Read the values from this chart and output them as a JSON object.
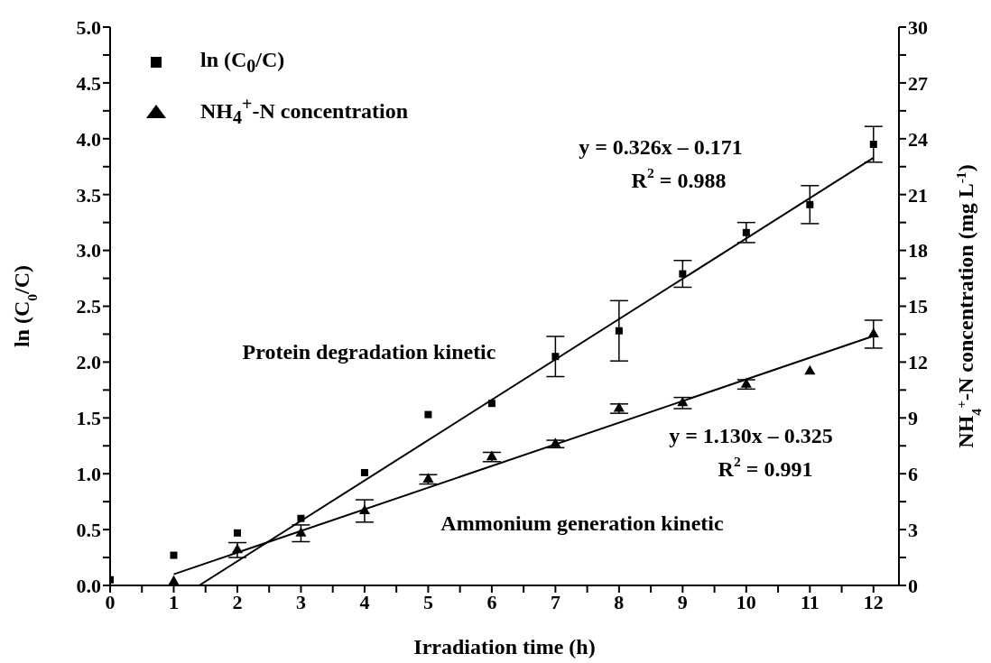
{
  "chart_data": {
    "type": "scatter",
    "xlabel": "Irradiation time (h)",
    "ylabel": "ln (C$_{0}$/C)",
    "y2label": "NH$_{4}$$^{+}$-N concentration (mg L$^{-1}$)",
    "xlim": [
      0,
      12.4
    ],
    "xticks": [
      0,
      {
        "value": 0.5,
        "label": null
      },
      1,
      {
        "value": 1.5,
        "label": null
      },
      2,
      {
        "value": 2.5,
        "label": null
      },
      3,
      {
        "value": 3.5,
        "label": null
      },
      4,
      {
        "value": 4.5,
        "label": null
      },
      5,
      {
        "value": 5.5,
        "label": null
      },
      6,
      {
        "value": 6.5,
        "label": null
      },
      7,
      {
        "value": 7.5,
        "label": null
      },
      8,
      {
        "value": 8.5,
        "label": null
      },
      9,
      {
        "value": 9.5,
        "label": null
      },
      10,
      {
        "value": 10.5,
        "label": null
      },
      11,
      {
        "value": 11.5,
        "label": null
      },
      12
    ],
    "ylim": [
      0,
      5
    ],
    "yticks": [
      {
        "value": 0,
        "label": "0.0"
      },
      {
        "value": 0.25,
        "label": null
      },
      {
        "value": 0.5,
        "label": "0.5"
      },
      {
        "value": 0.75,
        "label": null
      },
      {
        "value": 1,
        "label": "1.0"
      },
      {
        "value": 1.25,
        "label": null
      },
      {
        "value": 1.5,
        "label": "1.5"
      },
      {
        "value": 1.75,
        "label": null
      },
      {
        "value": 2,
        "label": "2.0"
      },
      {
        "value": 2.25,
        "label": null
      },
      {
        "value": 2.5,
        "label": "2.5"
      },
      {
        "value": 2.75,
        "label": null
      },
      {
        "value": 3,
        "label": "3.0"
      },
      {
        "value": 3.25,
        "label": null
      },
      {
        "value": 3.5,
        "label": "3.5"
      },
      {
        "value": 3.75,
        "label": null
      },
      {
        "value": 4,
        "label": "4.0"
      },
      {
        "value": 4.25,
        "label": null
      },
      {
        "value": 4.5,
        "label": "4.5"
      },
      {
        "value": 4.75,
        "label": null
      },
      {
        "value": 5,
        "label": "5.0"
      }
    ],
    "y2lim": [
      0,
      30
    ],
    "y2ticks": [
      0,
      {
        "value": 1.5,
        "label": null
      },
      3,
      {
        "value": 4.5,
        "label": null
      },
      6,
      {
        "value": 7.5,
        "label": null
      },
      9,
      {
        "value": 10.5,
        "label": null
      },
      12,
      {
        "value": 13.5,
        "label": null
      },
      15,
      {
        "value": 16.5,
        "label": null
      },
      18,
      {
        "value": 19.5,
        "label": null
      },
      21,
      {
        "value": 22.5,
        "label": null
      },
      24,
      {
        "value": 25.5,
        "label": null
      },
      27,
      {
        "value": 28.5,
        "label": null
      },
      30
    ],
    "legend": "top left",
    "series": [
      {
        "name": "ln (C$_{0}$/C)",
        "marker": "square",
        "color": "#000000",
        "x": [
          0,
          1,
          2,
          3,
          4,
          5,
          6,
          7,
          8,
          9,
          10,
          11,
          12
        ],
        "values": [
          0.05,
          0.27,
          0.47,
          0.6,
          1.01,
          1.53,
          1.63,
          2.05,
          2.28,
          2.79,
          3.16,
          3.41,
          3.95
        ],
        "errors": [
          null,
          null,
          null,
          null,
          null,
          null,
          null,
          0.18,
          0.27,
          0.12,
          0.09,
          0.17,
          0.16
        ]
      },
      {
        "name": "NH$_{4}$$^{+}$-N concentration",
        "marker": "triangle",
        "axis": "y2",
        "color": "#000000",
        "x": [
          1,
          2,
          3,
          4,
          5,
          6,
          7,
          8,
          9,
          10,
          11,
          12
        ],
        "values": [
          0.2,
          1.9,
          2.8,
          4.0,
          5.7,
          6.9,
          7.6,
          9.5,
          9.8,
          10.8,
          11.5,
          13.5
        ],
        "errors": [
          null,
          0.4,
          0.45,
          0.6,
          0.25,
          0.25,
          0.2,
          0.25,
          0.3,
          0.25,
          null,
          0.75
        ]
      },
      {
        "type": "line",
        "marker": "none",
        "color": "#000000",
        "x": [
          1.4,
          12
        ],
        "values": [
          0,
          3.83
        ]
      },
      {
        "type": "line",
        "marker": "none",
        "axis": "y2",
        "color": "#000000",
        "x": [
          1,
          12
        ],
        "values": [
          0.6,
          13.4
        ]
      }
    ],
    "annotations": [
      "Protein degradation kinetic",
      "y = 0.326x – 0.171",
      "R$^{2}$ = 0.988",
      "y = 1.130x – 0.325",
      "R$^{2}$ = 0.991",
      "Ammonium generation kinetic"
    ]
  }
}
